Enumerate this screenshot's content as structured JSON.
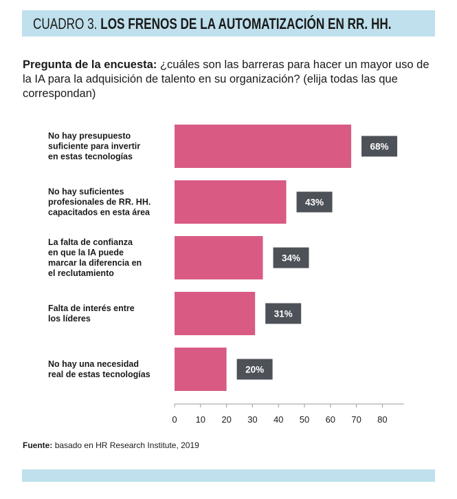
{
  "header": {
    "prefix": "CUADRO 3.",
    "title": "LOS FRENOS DE LA AUTOMATIZACIÓN EN RR. HH."
  },
  "question": {
    "label": "Pregunta de la encuesta:",
    "text": "¿cuáles son las barreras para hacer un mayor uso de la IA para la adquisición de talento en su organización? (elija todas las que correspondan)"
  },
  "chart_data": {
    "type": "bar",
    "orientation": "horizontal",
    "categories": [
      [
        "No hay presupuesto",
        "suficiente para invertir",
        "en estas tecnologías"
      ],
      [
        "No hay suficientes",
        "profesionales de RR. HH.",
        "capacitados en esta área"
      ],
      [
        "La falta de confianza",
        "en que la IA puede",
        "marcar la diferencia en",
        "el reclutamiento"
      ],
      [
        "Falta de interés entre",
        "los líderes"
      ],
      [
        "No hay una necesidad",
        "real de estas tecnologías"
      ]
    ],
    "values": [
      68,
      43,
      34,
      31,
      20
    ],
    "value_labels": [
      "68%",
      "43%",
      "34%",
      "31%",
      "20%"
    ],
    "xlim": [
      0,
      80
    ],
    "xticks": [
      0,
      10,
      20,
      30,
      40,
      50,
      60,
      70,
      80
    ],
    "grid": false,
    "colors": {
      "bar": "#d95a82",
      "label_box": "#4d5158"
    }
  },
  "source": {
    "label": "Fuente:",
    "text": "basado en HR Research Institute, 2019"
  },
  "colors": {
    "band": "#bfe0ec"
  }
}
